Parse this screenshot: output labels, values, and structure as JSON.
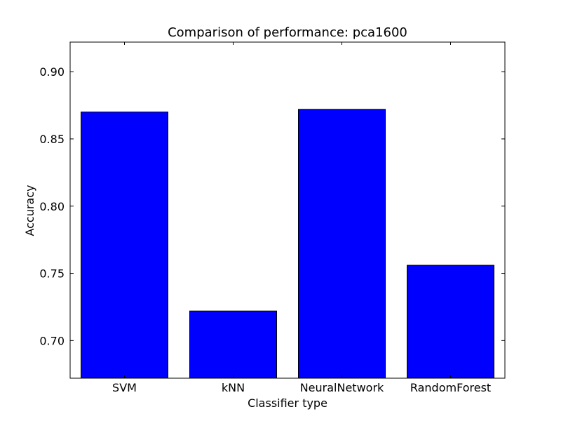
{
  "chart_data": {
    "type": "bar",
    "title": "Comparison of performance: pca1600",
    "xlabel": "Classifier type",
    "ylabel": "Accuracy",
    "categories": [
      "SVM",
      "kNN",
      "NeuralNetwork",
      "RandomForest"
    ],
    "values": [
      0.87,
      0.722,
      0.872,
      0.756
    ],
    "ylim": [
      0.672,
      0.922
    ],
    "yticks": [
      0.7,
      0.75,
      0.8,
      0.85,
      0.9
    ],
    "ytick_labels": [
      "0.70",
      "0.75",
      "0.80",
      "0.85",
      "0.90"
    ],
    "grid": false,
    "legend": "none",
    "colors": {
      "bar_fill": "#0000ff",
      "bar_stroke": "#000000",
      "axes_stroke": "#000000",
      "background": "#ffffff"
    }
  }
}
